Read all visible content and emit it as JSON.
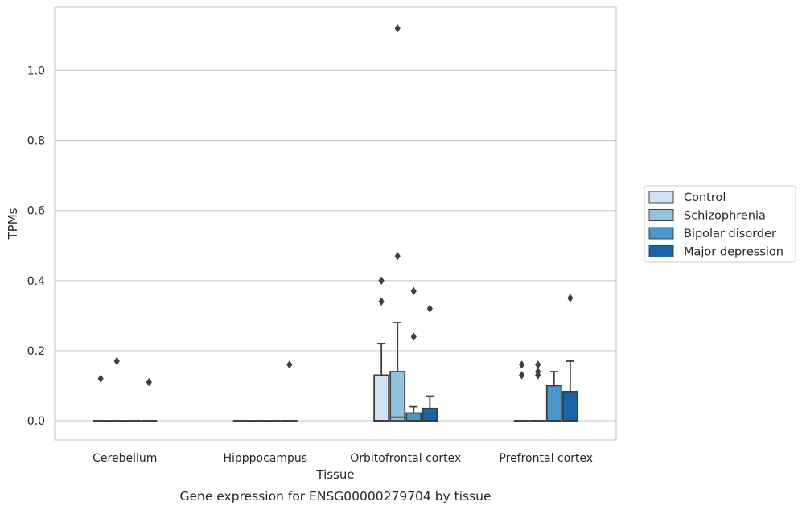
{
  "chart_data": {
    "type": "box",
    "caption": "Gene expression for ENSG00000279704 by tissue",
    "xlabel": "Tissue",
    "ylabel": "TPMs",
    "ylim": [
      -0.055,
      1.18
    ],
    "yticks": [
      0.0,
      0.2,
      0.4,
      0.6,
      0.8,
      1.0
    ],
    "ytick_labels": [
      "0.0",
      "0.2",
      "0.4",
      "0.6",
      "0.8",
      "1.0"
    ],
    "grid": true,
    "legend_position": "right",
    "categories": [
      "Cerebellum",
      "Hipppocampus",
      "Orbitofrontal cortex",
      "Prefrontal cortex"
    ],
    "series": [
      {
        "name": "Control",
        "color": "#cfe1f2",
        "boxes": [
          {
            "q1": 0,
            "median": 0,
            "q3": 0,
            "whisker_low": 0,
            "whisker_high": 0,
            "outliers": [
              0.12
            ]
          },
          {
            "q1": 0,
            "median": 0,
            "q3": 0,
            "whisker_low": 0,
            "whisker_high": 0,
            "outliers": []
          },
          {
            "q1": 0,
            "median": 0,
            "q3": 0.13,
            "whisker_low": 0,
            "whisker_high": 0.22,
            "outliers": [
              0.34,
              0.4
            ]
          },
          {
            "q1": 0,
            "median": 0,
            "q3": 0,
            "whisker_low": 0,
            "whisker_high": 0,
            "outliers": [
              0.13,
              0.16
            ]
          }
        ]
      },
      {
        "name": "Schizophrenia",
        "color": "#93c4de",
        "boxes": [
          {
            "q1": 0,
            "median": 0,
            "q3": 0,
            "whisker_low": 0,
            "whisker_high": 0,
            "outliers": [
              0.17
            ]
          },
          {
            "q1": 0,
            "median": 0,
            "q3": 0,
            "whisker_low": 0,
            "whisker_high": 0,
            "outliers": []
          },
          {
            "q1": 0,
            "median": 0.01,
            "q3": 0.14,
            "whisker_low": 0,
            "whisker_high": 0.28,
            "outliers": [
              0.47,
              1.12
            ]
          },
          {
            "q1": 0,
            "median": 0,
            "q3": 0,
            "whisker_low": 0,
            "whisker_high": 0,
            "outliers": [
              0.13,
              0.14,
              0.16
            ]
          }
        ]
      },
      {
        "name": "Bipolar disorder",
        "color": "#4a98c9",
        "boxes": [
          {
            "q1": 0,
            "median": 0,
            "q3": 0,
            "whisker_low": 0,
            "whisker_high": 0,
            "outliers": []
          },
          {
            "q1": 0,
            "median": 0,
            "q3": 0,
            "whisker_low": 0,
            "whisker_high": 0,
            "outliers": []
          },
          {
            "q1": 0,
            "median": 0,
            "q3": 0.022,
            "whisker_low": 0,
            "whisker_high": 0.04,
            "outliers": [
              0.24,
              0.37
            ]
          },
          {
            "q1": 0,
            "median": 0,
            "q3": 0.1,
            "whisker_low": 0,
            "whisker_high": 0.14,
            "outliers": []
          }
        ]
      },
      {
        "name": "Major depression",
        "color": "#1764ab",
        "boxes": [
          {
            "q1": 0,
            "median": 0,
            "q3": 0,
            "whisker_low": 0,
            "whisker_high": 0,
            "outliers": [
              0.11
            ]
          },
          {
            "q1": 0,
            "median": 0,
            "q3": 0,
            "whisker_low": 0,
            "whisker_high": 0,
            "outliers": [
              0.16
            ]
          },
          {
            "q1": 0,
            "median": 0,
            "q3": 0.035,
            "whisker_low": 0,
            "whisker_high": 0.07,
            "outliers": [
              0.32
            ]
          },
          {
            "q1": 0,
            "median": 0,
            "q3": 0.083,
            "whisker_low": 0,
            "whisker_high": 0.17,
            "outliers": [
              0.35
            ]
          }
        ]
      }
    ],
    "colors": {
      "box_edge": "#3d3d3d",
      "grid": "#cccccc",
      "frame": "#cccccc"
    }
  }
}
